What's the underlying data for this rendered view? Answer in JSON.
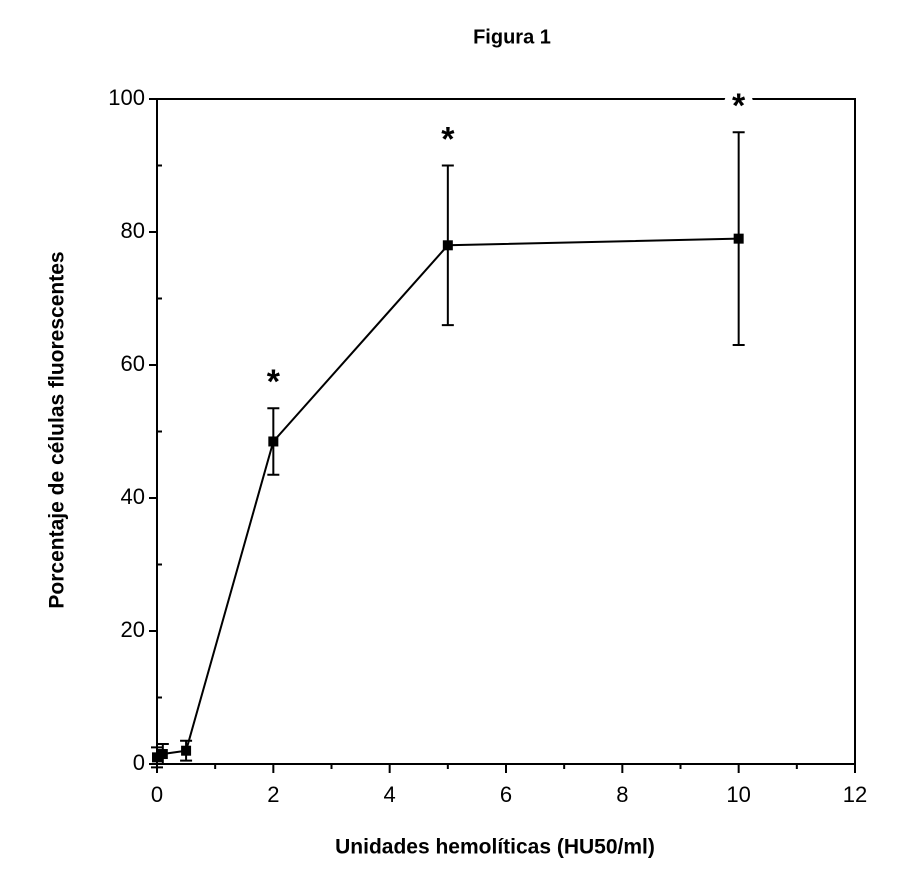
{
  "chart_data": {
    "type": "line",
    "title": "Figura 1",
    "x_label": "Unidades hemolíticas (HU50/ml)",
    "y_label": "Porcentaje de células fluorescentes",
    "x": [
      0,
      0.1,
      0.5,
      2,
      5,
      10
    ],
    "series": [
      {
        "color": "#000000",
        "values": [
          1,
          1.5,
          2,
          48.5,
          78,
          79
        ],
        "errors": [
          1.5,
          1.5,
          1.5,
          5,
          12,
          16
        ],
        "significance": [
          null,
          null,
          null,
          "*",
          "*",
          "*"
        ]
      }
    ],
    "xlim": [
      0,
      12
    ],
    "xticks": [
      0,
      2,
      4,
      6,
      8,
      10,
      12
    ],
    "ylim": [
      0,
      100
    ],
    "yticks": [
      0,
      20,
      40,
      60,
      80,
      100
    ],
    "grid": false
  }
}
